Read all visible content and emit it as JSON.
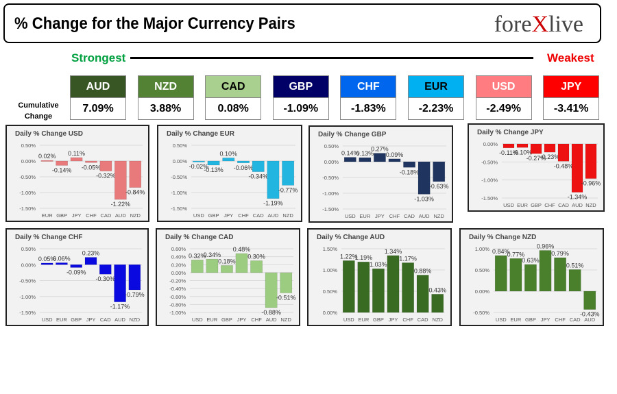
{
  "header": {
    "title": "% Change for the Major Currency Pairs",
    "logo_text": "forexlive"
  },
  "strongest": "Strongest",
  "weakest": "Weakest",
  "cumulative_label": "Cumulative Change",
  "cumulative": [
    {
      "ccy": "AUD",
      "value": "7.09%",
      "color": "#375623",
      "text": "#fff"
    },
    {
      "ccy": "NZD",
      "value": "3.88%",
      "color": "#548235",
      "text": "#fff"
    },
    {
      "ccy": "CAD",
      "value": "0.08%",
      "color": "#a9d08e",
      "text": "#000"
    },
    {
      "ccy": "GBP",
      "value": "-1.09%",
      "color": "#000066",
      "text": "#fff"
    },
    {
      "ccy": "CHF",
      "value": "-1.83%",
      "color": "#0066ee",
      "text": "#fff"
    },
    {
      "ccy": "EUR",
      "value": "-2.23%",
      "color": "#00b0f0",
      "text": "#000"
    },
    {
      "ccy": "USD",
      "value": "-2.49%",
      "color": "#ff7c80",
      "text": "#fff"
    },
    {
      "ccy": "JPY",
      "value": "-3.41%",
      "color": "#ff0000",
      "text": "#fff"
    }
  ],
  "chart_data": [
    {
      "type": "bar",
      "title": "Daily % Change USD",
      "categories": [
        "EUR",
        "GBP",
        "JPY",
        "CHF",
        "CAD",
        "AUD",
        "NZD"
      ],
      "values": [
        0.02,
        -0.14,
        0.11,
        -0.05,
        -0.32,
        -1.22,
        -0.84
      ],
      "ylim": [
        -1.5,
        0.5
      ],
      "ystep": 0.5,
      "color": "#e87a7c"
    },
    {
      "type": "bar",
      "title": "Daily % Change EUR",
      "categories": [
        "USD",
        "GBP",
        "JPY",
        "CHF",
        "CAD",
        "AUD",
        "NZD"
      ],
      "values": [
        -0.02,
        -0.13,
        0.1,
        -0.06,
        -0.34,
        -1.19,
        -0.77
      ],
      "ylim": [
        -1.5,
        0.5
      ],
      "ystep": 0.5,
      "color": "#22b5e0"
    },
    {
      "type": "bar",
      "title": "Daily % Change GBP",
      "categories": [
        "USD",
        "EUR",
        "JPY",
        "CHF",
        "CAD",
        "AUD",
        "NZD"
      ],
      "values": [
        0.14,
        0.13,
        0.27,
        0.09,
        -0.18,
        -1.03,
        -0.63
      ],
      "ylim": [
        -1.5,
        0.5
      ],
      "ystep": 0.5,
      "color": "#1f3560"
    },
    {
      "type": "bar",
      "title": "Daily % Change JPY",
      "categories": [
        "USD",
        "EUR",
        "GBP",
        "CHF",
        "CAD",
        "AUD",
        "NZD"
      ],
      "values": [
        -0.11,
        -0.1,
        -0.27,
        -0.23,
        -0.48,
        -1.34,
        -0.96
      ],
      "ylim": [
        -1.5,
        0
      ],
      "ystep": 0.5,
      "color": "#ee1111"
    },
    {
      "type": "bar",
      "title": "Daily % Change CHF",
      "categories": [
        "USD",
        "EUR",
        "GBP",
        "JPY",
        "CAD",
        "AUD",
        "NZD"
      ],
      "values": [
        0.05,
        0.06,
        -0.09,
        0.23,
        -0.3,
        -1.17,
        -0.79
      ],
      "ylim": [
        -1.5,
        0.5
      ],
      "ystep": 0.5,
      "color": "#0a0ae0"
    },
    {
      "type": "bar",
      "title": "Daily % Change CAD",
      "categories": [
        "USD",
        "EUR",
        "GBP",
        "JPY",
        "CHF",
        "AUD",
        "NZD"
      ],
      "values": [
        0.32,
        0.34,
        0.18,
        0.48,
        0.3,
        -0.88,
        -0.51
      ],
      "ylim": [
        -1.0,
        0.6
      ],
      "ystep": 0.2,
      "color": "#9ccc80"
    },
    {
      "type": "bar",
      "title": "Daily % Change AUD",
      "categories": [
        "USD",
        "EUR",
        "GBP",
        "JPY",
        "CHF",
        "CAD",
        "NZD"
      ],
      "values": [
        1.22,
        1.19,
        1.03,
        1.34,
        1.17,
        0.88,
        0.43
      ],
      "ylim": [
        0,
        1.5
      ],
      "ystep": 0.5,
      "color": "#3a6b22"
    },
    {
      "type": "bar",
      "title": "Daily % Change NZD",
      "categories": [
        "USD",
        "EUR",
        "GBP",
        "JPY",
        "CHF",
        "CAD",
        "AUD"
      ],
      "values": [
        0.84,
        0.77,
        0.63,
        0.96,
        0.79,
        0.51,
        -0.43
      ],
      "ylim": [
        -0.5,
        1.0
      ],
      "ystep": 0.5,
      "color": "#4a7f2c"
    }
  ]
}
